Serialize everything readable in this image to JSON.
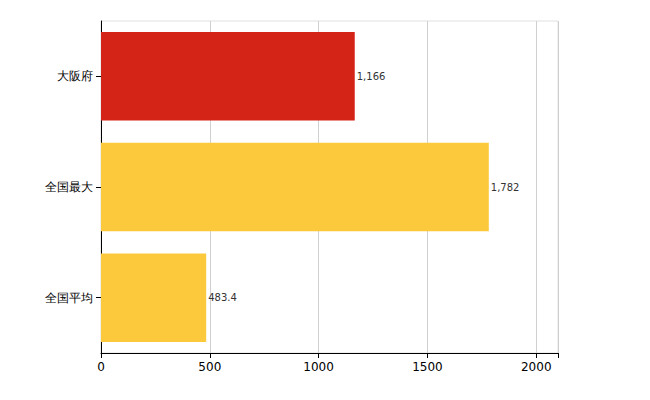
{
  "chart_data": {
    "type": "bar",
    "orientation": "horizontal",
    "categories": [
      "大阪府",
      "全国最大",
      "全国平均"
    ],
    "values": [
      1166,
      1782,
      483.4
    ],
    "value_labels": [
      "1,166",
      "1,782",
      "483.4"
    ],
    "colors": [
      "#d42317",
      "#fcc93c",
      "#fcc93c"
    ],
    "xlim": [
      0,
      2100
    ],
    "xticks": [
      0,
      500,
      1000,
      1500,
      2000
    ],
    "grid": true,
    "data_labels": true
  }
}
